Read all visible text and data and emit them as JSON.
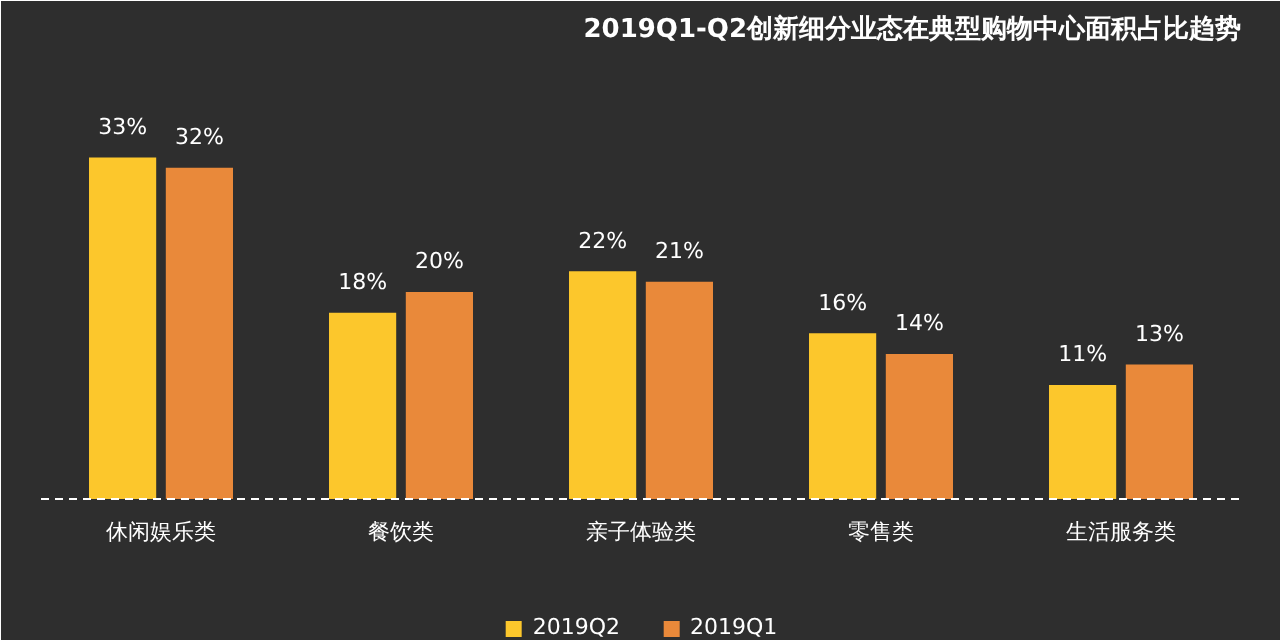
{
  "chart_data": {
    "type": "bar",
    "title": "2019Q1-Q2创新细分业态在典型购物中心面积占比趋势",
    "categories": [
      "休闲娱乐类",
      "餐饮类",
      "亲子体验类",
      "零售类",
      "生活服务类"
    ],
    "series": [
      {
        "name": "2019Q2",
        "color": "#fcc72c",
        "values": [
          33,
          18,
          22,
          16,
          11
        ],
        "value_labels": [
          "33%",
          "18%",
          "22%",
          "16%",
          "11%"
        ]
      },
      {
        "name": "2019Q1",
        "color": "#e9893a",
        "values": [
          32,
          20,
          21,
          14,
          13
        ],
        "value_labels": [
          "32%",
          "20%",
          "21%",
          "14%",
          "13%"
        ]
      }
    ],
    "legend": "bottom"
  }
}
